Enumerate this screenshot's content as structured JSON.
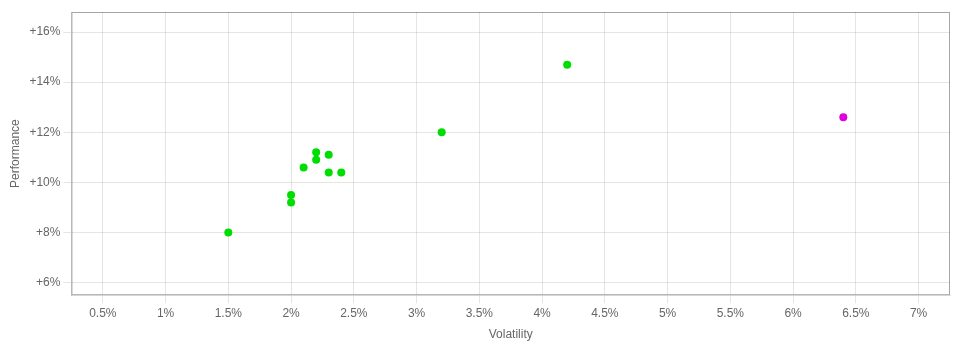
{
  "chart_data": {
    "type": "scatter",
    "xlabel": "Volatility",
    "ylabel": "Performance",
    "series": [
      {
        "color": "#00dd00",
        "x": [
          0.015,
          0.02,
          0.02,
          0.021,
          0.022,
          0.022,
          0.023,
          0.023,
          0.024,
          0.032,
          0.042
        ],
        "values": [
          0.08,
          0.095,
          0.092,
          0.106,
          0.112,
          0.109,
          0.111,
          0.104,
          0.104,
          0.12,
          0.147
        ]
      },
      {
        "color": "#dd00dd",
        "x": [
          0.064
        ],
        "values": [
          0.126
        ]
      }
    ],
    "xlim": [
      0.0025,
      0.0725
    ],
    "ylim": [
      0.055,
      0.168
    ],
    "xticks": [
      {
        "value": 0.005,
        "label": "0.5%"
      },
      {
        "value": 0.01,
        "label": "1%"
      },
      {
        "value": 0.015,
        "label": "1.5%"
      },
      {
        "value": 0.02,
        "label": "2%"
      },
      {
        "value": 0.025,
        "label": "2.5%"
      },
      {
        "value": 0.03,
        "label": "3%"
      },
      {
        "value": 0.035,
        "label": "3.5%"
      },
      {
        "value": 0.04,
        "label": "4%"
      },
      {
        "value": 0.045,
        "label": "4.5%"
      },
      {
        "value": 0.05,
        "label": "5%"
      },
      {
        "value": 0.055,
        "label": "5.5%"
      },
      {
        "value": 0.06,
        "label": "6%"
      },
      {
        "value": 0.065,
        "label": "6.5%"
      },
      {
        "value": 0.07,
        "label": "7%"
      }
    ],
    "yticks": [
      {
        "value": 0.06,
        "label": "+6%"
      },
      {
        "value": 0.08,
        "label": "+8%"
      },
      {
        "value": 0.1,
        "label": "+10%"
      },
      {
        "value": 0.12,
        "label": "+12%"
      },
      {
        "value": 0.14,
        "label": "+14%"
      },
      {
        "value": 0.16,
        "label": "+16%"
      }
    ],
    "grid": true
  }
}
